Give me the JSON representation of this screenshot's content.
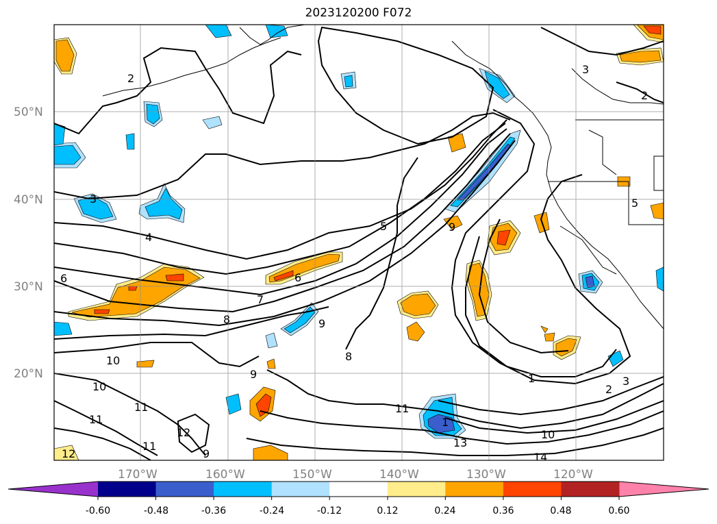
{
  "title": "2023120200 F072",
  "map": {
    "lat_labels": [
      "50°N",
      "40°N",
      "30°N",
      "20°N"
    ],
    "lon_labels": [
      "170°W",
      "160°W",
      "150°W",
      "140°W",
      "130°W",
      "120°W"
    ],
    "contour_labels": [
      "2",
      "3",
      "4",
      "5",
      "6",
      "7",
      "8",
      "9",
      "10",
      "11",
      "12",
      "13",
      "14",
      "1",
      "2",
      "3",
      "5",
      "6",
      "8",
      "9",
      "9",
      "9",
      "10",
      "11",
      "11",
      "11",
      "12",
      "3",
      "1",
      "2",
      "10"
    ]
  },
  "colorbar": {
    "tick_labels": [
      "-0.60",
      "-0.48",
      "-0.36",
      "-0.24",
      "-0.12",
      "0.12",
      "0.24",
      "0.36",
      "0.48",
      "0.60"
    ],
    "colors": [
      "#9932cc",
      "#00008b",
      "#3a5fcd",
      "#00bfff",
      "#b0e2ff",
      "#ffffff",
      "#ffec8b",
      "#ffa500",
      "#ff4500",
      "#b22222",
      "#ff82ab"
    ]
  }
}
